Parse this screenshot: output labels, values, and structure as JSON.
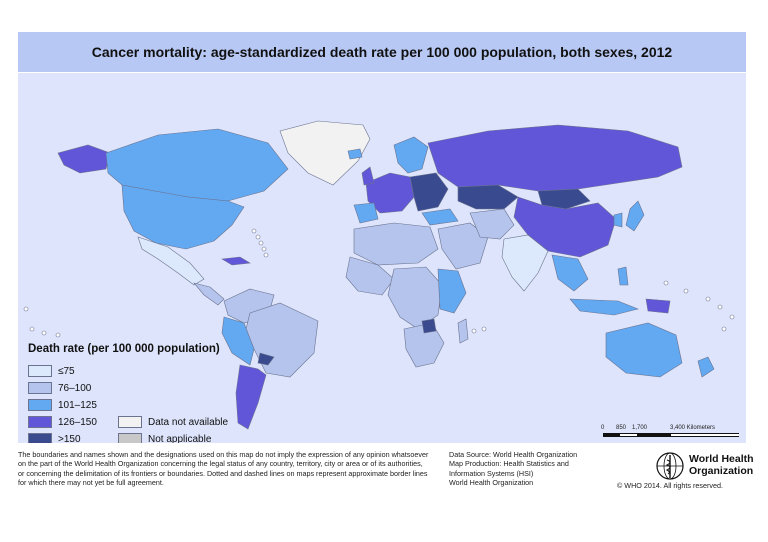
{
  "title": "Cancer mortality: age-standardized death rate per 100 000 population, both sexes, 2012",
  "legend": {
    "title": "Death rate (per 100 000 population)",
    "classes": [
      {
        "label": "≤75",
        "color": "#dce8fb"
      },
      {
        "label": "76–100",
        "color": "#b4c4ec"
      },
      {
        "label": "101–125",
        "color": "#62a9f2"
      },
      {
        "label": "126–150",
        "color": "#6156d8"
      },
      {
        "label": ">150",
        "color": "#3a4a8e"
      }
    ],
    "other": [
      {
        "label": "Data not available",
        "color": "#f2f2f2"
      },
      {
        "label": "Not applicable",
        "color": "#c8c8c8"
      }
    ]
  },
  "scale": {
    "ticks": [
      "0",
      "850",
      "1,700",
      "3,400 Kilometers"
    ]
  },
  "disclaimer": [
    "The boundaries and names shown and the designations used on this map do not imply the expression of any opinion whatsoever",
    "on the part of the World Health Organization concerning the legal status of any country, territory, city or area or of its authorities,",
    "or concerning the delimitation of its frontiers or boundaries. Dotted and dashed lines on maps represent approximate border lines",
    "for which there may not yet be full agreement."
  ],
  "credits": [
    "Data Source: World Health Organization",
    "Map Production: Health Statistics and",
    "Information Systems (HSI)",
    "World Health Organization"
  ],
  "org": {
    "line1": "World Health",
    "line2": "Organization"
  },
  "copyright": "© WHO 2014. All rights reserved.",
  "colors": {
    "background": "#dde4fb",
    "title_bar": "#b7c8f4",
    "ocean": "#dde4fb"
  }
}
